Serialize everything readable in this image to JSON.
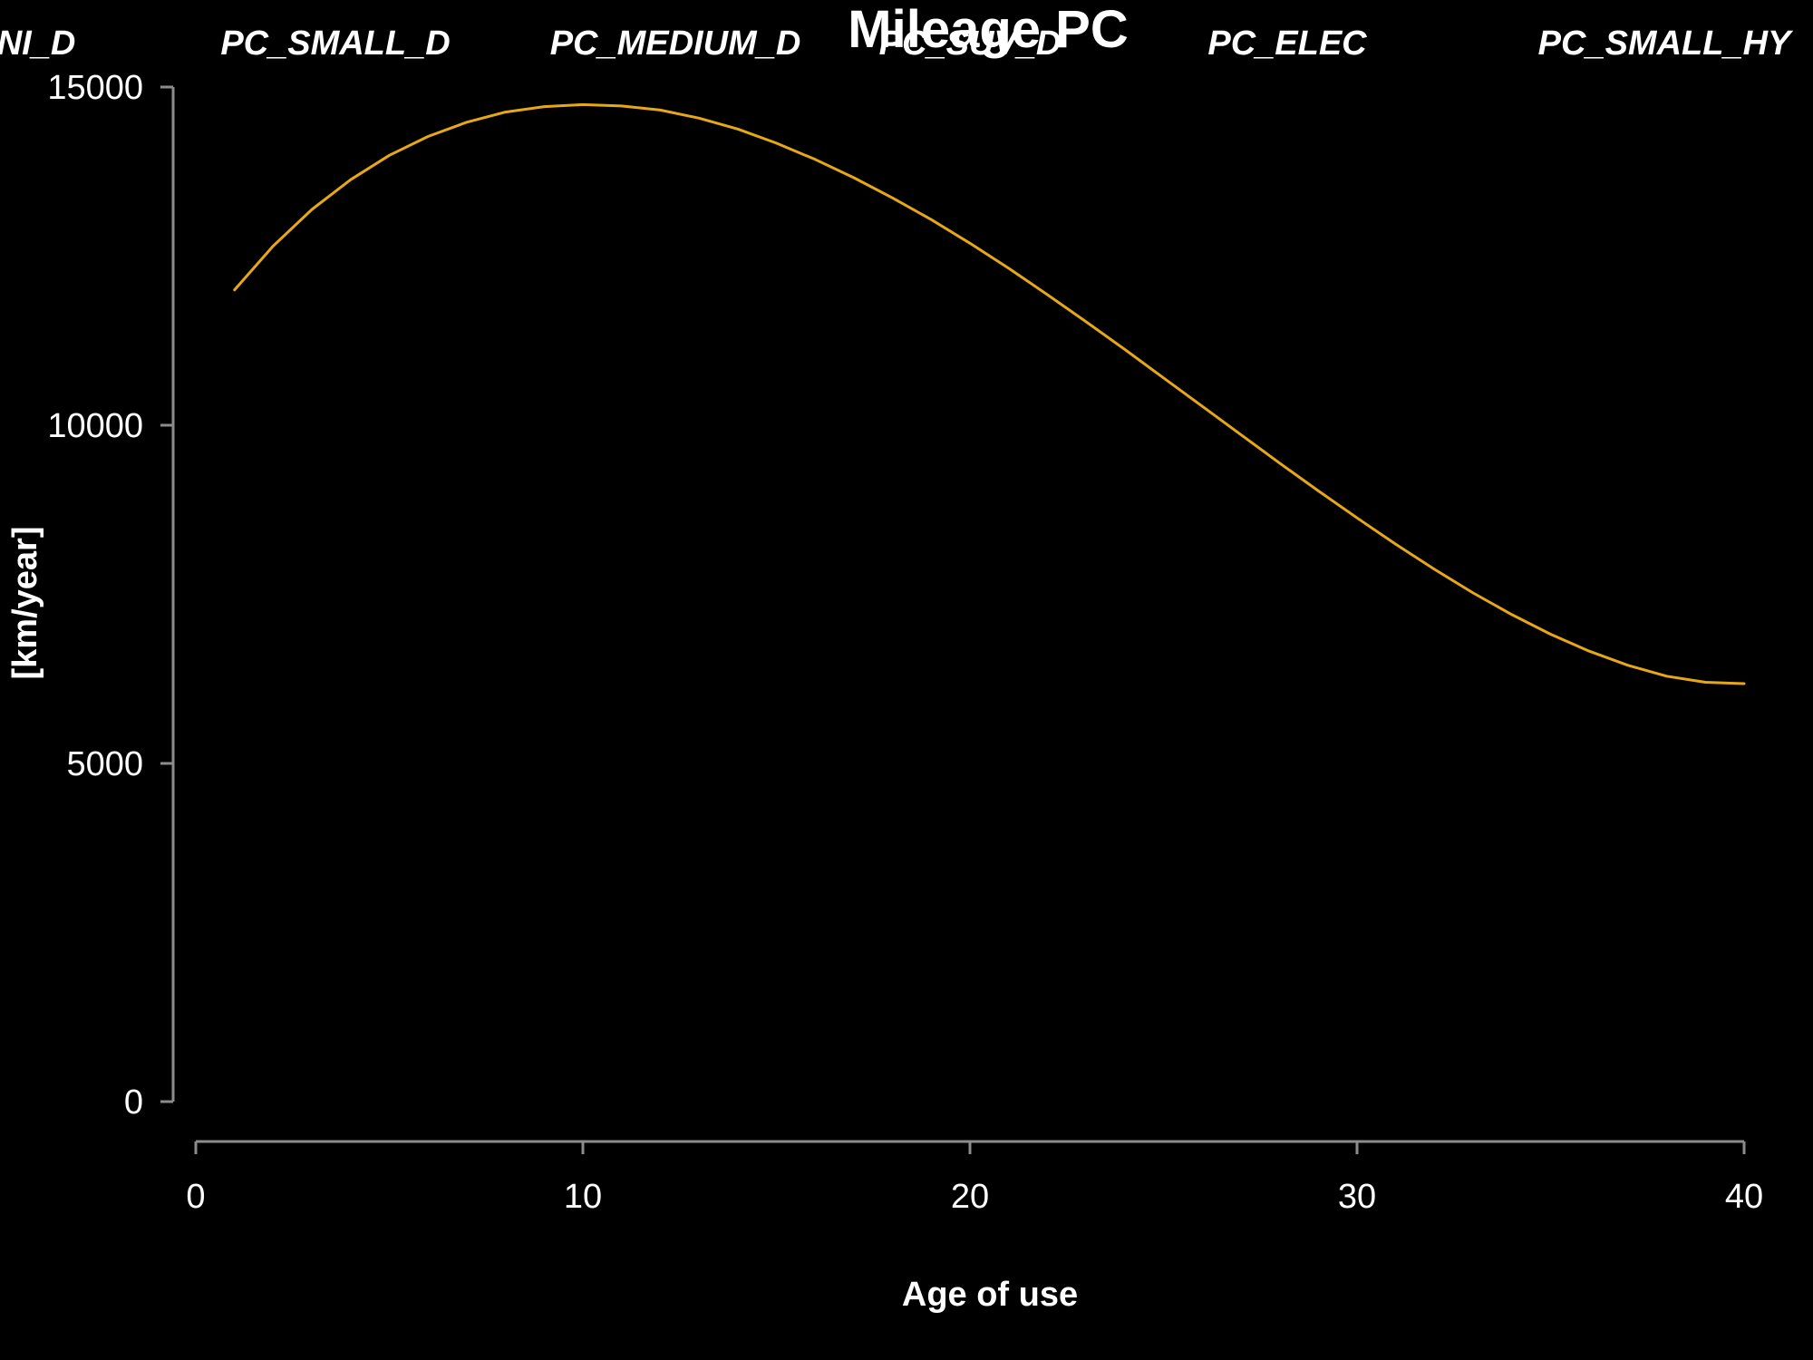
{
  "chart_data": {
    "type": "line",
    "title": "Mileage PC",
    "xlabel": "Age of use",
    "ylabel": "[km/year]",
    "xlim": [
      0,
      40
    ],
    "ylim": [
      0,
      15000
    ],
    "xticks": [
      "0",
      "10",
      "20",
      "30",
      "40"
    ],
    "yticks": [
      "0",
      "5000",
      "10000",
      "15000"
    ],
    "grid": false,
    "legend": "none",
    "category_labels": [
      "NI_D",
      "PC_SMALL_D",
      "PC_MEDIUM_D",
      "PC_SUV_D",
      "PC_ELEC",
      "PC_SMALL_HY"
    ],
    "series": [
      {
        "color": "#e6a817",
        "x": [
          1,
          2,
          3,
          4,
          5,
          6,
          7,
          8,
          9,
          10,
          11,
          12,
          13,
          14,
          15,
          16,
          17,
          18,
          19,
          20,
          21,
          22,
          23,
          24,
          25,
          26,
          27,
          28,
          29,
          30,
          31,
          32,
          33,
          34,
          35,
          36,
          37,
          38,
          39,
          40
        ],
        "y": [
          12000,
          12650,
          13190,
          13630,
          13990,
          14270,
          14480,
          14630,
          14710,
          14740,
          14720,
          14660,
          14540,
          14380,
          14170,
          13930,
          13660,
          13360,
          13040,
          12690,
          12320,
          11930,
          11530,
          11120,
          10700,
          10280,
          9860,
          9440,
          9030,
          8630,
          8240,
          7870,
          7520,
          7200,
          6910,
          6660,
          6450,
          6290,
          6200,
          6180
        ]
      }
    ]
  }
}
